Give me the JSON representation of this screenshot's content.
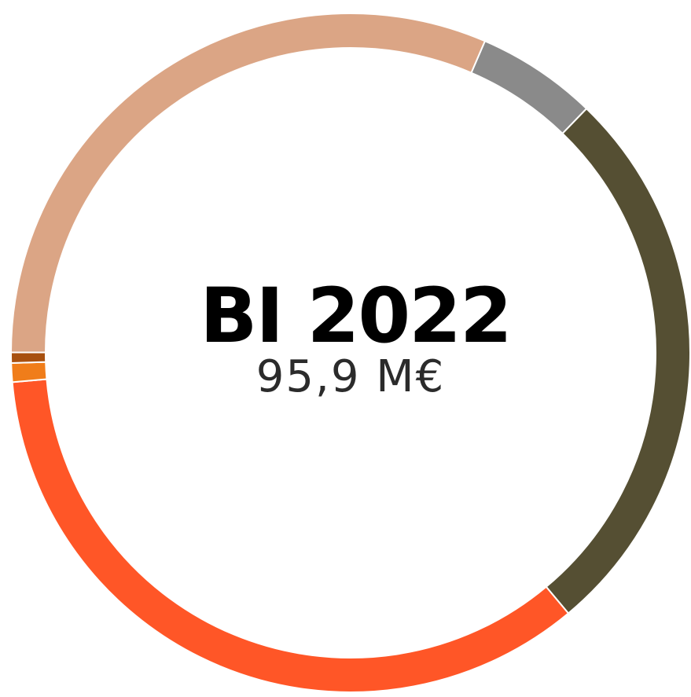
{
  "chart_data": {
    "type": "donut",
    "title": "BI 2022",
    "subtitle": "95,9 M€",
    "categories": [
      null,
      null,
      null,
      null,
      null,
      null
    ],
    "values": [
      5.75,
      26.7,
      34.7,
      0.9,
      0.5,
      31.45
    ],
    "colors": [
      "#8a8a8a",
      "#554f33",
      "#ff5627",
      "#f07d1a",
      "#a8500f",
      "#dba585"
    ]
  }
}
